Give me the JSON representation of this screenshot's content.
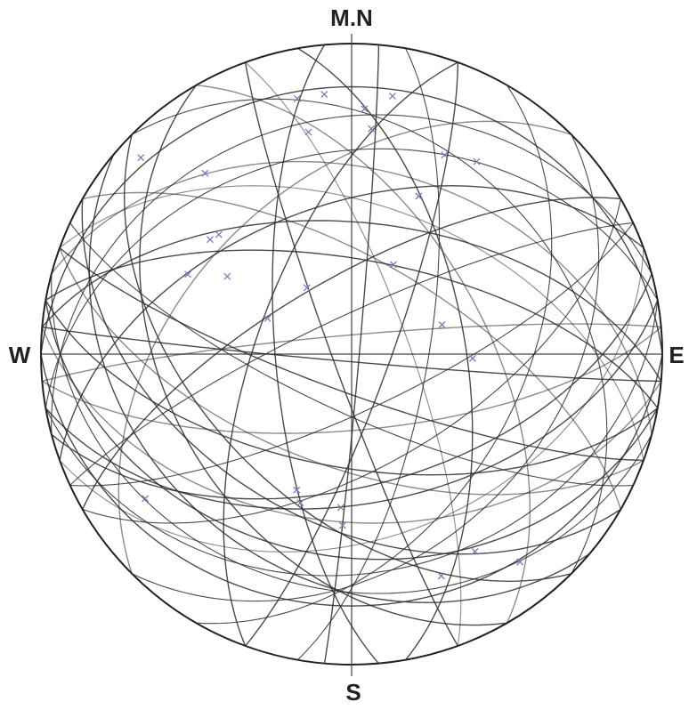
{
  "chart_data": {
    "type": "stereonet",
    "labels": {
      "north": "M.N",
      "west": "W",
      "east": "E",
      "south": "S"
    },
    "planes": {
      "strike": [
        80,
        95,
        100,
        260,
        275,
        85,
        105,
        110,
        250,
        70,
        280,
        90,
        115,
        265,
        75,
        255,
        120,
        285,
        60,
        100,
        240,
        290,
        95,
        270,
        65,
        300,
        130,
        245,
        80,
        110,
        10,
        350,
        20,
        340,
        160,
        200,
        30,
        330,
        150,
        45,
        135,
        225,
        315,
        5,
        175
      ],
      "dip": [
        30,
        45,
        60,
        35,
        55,
        70,
        25,
        80,
        50,
        40,
        65,
        20,
        75,
        85,
        55,
        25,
        45,
        40,
        60,
        35,
        70,
        50,
        88,
        15,
        75,
        65,
        30,
        80,
        50,
        60,
        70,
        60,
        80,
        75,
        85,
        65,
        45,
        55,
        40,
        35,
        50,
        45,
        30,
        88,
        70
      ]
    },
    "poles": {
      "trend": [
        9,
        348,
        3,
        349,
        313,
        321,
        25,
        33,
        309,
        312,
        296,
        302,
        293,
        25,
        72,
        92,
        23,
        326,
        235,
        202,
        184,
        199,
        158,
        148,
        141,
        183,
        5,
        354
      ],
      "plunge": [
        17,
        17,
        22,
        28,
        8,
        26,
        30,
        27,
        41,
        42,
        41,
        51,
        66,
        64,
        65,
        58,
        44,
        69,
        20,
        51,
        49,
        48,
        24,
        26,
        15,
        44,
        28,
        17
      ]
    },
    "plane_color": "#2b2b2b",
    "pole_color": "#6f7fb8"
  }
}
